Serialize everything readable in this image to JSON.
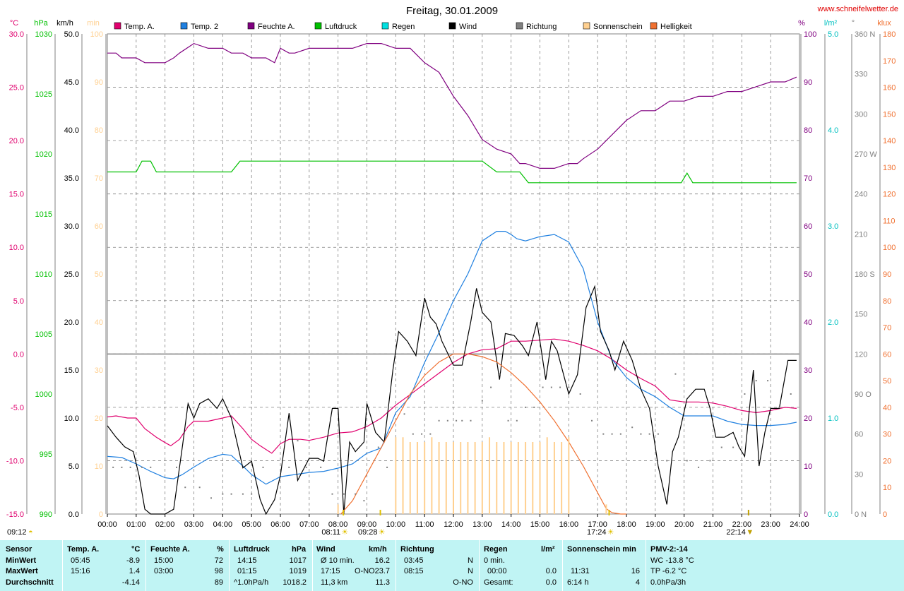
{
  "header": {
    "title": "Freitag, 30.01.2009",
    "website": "www.schneifelwetter.de"
  },
  "legend": [
    {
      "label": "Temp. A.",
      "color": "#e0006e"
    },
    {
      "label": "Temp. 2",
      "color": "#2080e0"
    },
    {
      "label": "Feuchte A.",
      "color": "#800080"
    },
    {
      "label": "Luftdruck",
      "color": "#00c000"
    },
    {
      "label": "Regen",
      "color": "#00e0e0"
    },
    {
      "label": "Wind",
      "color": "#000000"
    },
    {
      "label": "Richtung",
      "color": "#808080"
    },
    {
      "label": "Sonnenschein",
      "color": "#ffd090"
    },
    {
      "label": "Helligkeit",
      "color": "#f07030"
    }
  ],
  "axis_units": {
    "temp": "°C",
    "pressure": "hPa",
    "wind": "km/h",
    "sun": "min",
    "humidity": "%",
    "rain": "l/m²",
    "direction": "°",
    "lux": "klux"
  },
  "events": {
    "sunrise": "08:11",
    "sunrise2": "09:28",
    "sunset": "17:24",
    "moonset": "22:14",
    "moonrise": "09:12"
  },
  "chart_data": {
    "type": "line",
    "x_unit": "hour of day",
    "xlim": [
      0,
      24
    ],
    "x_ticks": [
      "00:00",
      "01:00",
      "02:00",
      "03:00",
      "04:00",
      "05:00",
      "06:00",
      "07:00",
      "08:00",
      "09:00",
      "10:00",
      "11:00",
      "12:00",
      "13:00",
      "14:00",
      "15:00",
      "16:00",
      "17:00",
      "18:00",
      "19:00",
      "20:00",
      "21:00",
      "22:00",
      "23:00",
      "24:00"
    ],
    "axes": {
      "temp": {
        "range": [
          -15,
          30
        ],
        "ticks": [
          "30.0",
          "25.0",
          "20.0",
          "15.0",
          "10.0",
          "5.0",
          "0.0",
          "-5.0",
          "-10.0",
          "-15.0"
        ],
        "color": "#e0006e"
      },
      "pressure": {
        "range": [
          990,
          1030
        ],
        "ticks": [
          "1030",
          "1025",
          "1020",
          "1015",
          "1010",
          "1005",
          "1000",
          "995",
          "990"
        ],
        "color": "#00c000"
      },
      "wind": {
        "range": [
          0,
          50
        ],
        "ticks": [
          "50.0",
          "45.0",
          "40.0",
          "35.0",
          "30.0",
          "25.0",
          "20.0",
          "15.0",
          "10.0",
          "5.0",
          "0.0"
        ],
        "color": "#000000"
      },
      "sun": {
        "range": [
          0,
          100
        ],
        "ticks": [
          "100",
          "90",
          "80",
          "70",
          "60",
          "50",
          "40",
          "30",
          "20",
          "10",
          "0"
        ],
        "color": "#ffd090"
      },
      "humidity": {
        "range": [
          0,
          100
        ],
        "ticks": [
          "100",
          "90",
          "80",
          "70",
          "60",
          "50",
          "40",
          "30",
          "20",
          "10",
          "0"
        ],
        "color": "#800080"
      },
      "rain": {
        "range": [
          0,
          5
        ],
        "ticks": [
          "5.0",
          "4.0",
          "3.0",
          "2.0",
          "1.0",
          "0.0"
        ],
        "color": "#00c0c0"
      },
      "direction": {
        "range": [
          0,
          360
        ],
        "ticks": [
          "360 N",
          "330",
          "300",
          "270 W",
          "240",
          "210",
          "180 S",
          "150",
          "120",
          "90 O",
          "60",
          "30",
          "0 N"
        ],
        "color": "#808080"
      },
      "lux": {
        "range": [
          0,
          180
        ],
        "ticks": [
          "180",
          "170",
          "160",
          "150",
          "140",
          "130",
          "120",
          "110",
          "100",
          "90",
          "80",
          "70",
          "60",
          "50",
          "40",
          "30",
          "20",
          "10",
          "0"
        ],
        "color": "#f07030"
      }
    },
    "series": [
      {
        "name": "Temp. A.",
        "axis": "temp",
        "color": "#e0006e",
        "x": [
          0,
          0.3,
          0.7,
          1,
          1.3,
          1.7,
          2,
          2.2,
          2.5,
          2.8,
          3,
          3.5,
          4,
          4.3,
          4.7,
          5,
          5.3,
          5.7,
          6,
          6.3,
          6.7,
          7,
          7.5,
          8,
          8.5,
          9,
          9.5,
          10,
          10.5,
          11,
          11.5,
          12,
          12.5,
          13,
          13.5,
          14,
          14.5,
          15,
          15.5,
          16,
          16.5,
          17,
          17.5,
          18,
          18.5,
          19,
          19.5,
          20,
          20.5,
          21,
          21.5,
          22,
          22.5,
          23,
          23.5,
          23.9
        ],
        "y": [
          -5.9,
          -5.8,
          -6.0,
          -6.0,
          -7.0,
          -7.8,
          -8.3,
          -8.6,
          -8.0,
          -6.8,
          -6.3,
          -6.3,
          -6.0,
          -5.8,
          -7.0,
          -8.0,
          -8.6,
          -9.3,
          -8.4,
          -8.0,
          -8.0,
          -8.1,
          -7.8,
          -7.4,
          -7.3,
          -6.8,
          -6.0,
          -4.8,
          -3.8,
          -2.8,
          -1.8,
          -0.8,
          0.0,
          0.4,
          0.5,
          1.2,
          1.2,
          1.3,
          1.4,
          1.2,
          0.8,
          0.3,
          -0.5,
          -1.5,
          -2.3,
          -3.0,
          -4.3,
          -4.5,
          -4.5,
          -4.6,
          -4.9,
          -5.3,
          -5.5,
          -5.3,
          -5.0,
          -5.1
        ]
      },
      {
        "name": "Temp. 2",
        "axis": "temp",
        "color": "#2080e0",
        "x": [
          0,
          0.5,
          1,
          1.5,
          2,
          2.3,
          2.6,
          3,
          3.5,
          4,
          4.3,
          4.7,
          5,
          5.5,
          6,
          6.5,
          7,
          7.5,
          8,
          8.5,
          9,
          9.5,
          10,
          10.5,
          11,
          11.5,
          12,
          12.5,
          13,
          13.5,
          13.8,
          14,
          14.2,
          14.5,
          15,
          15.5,
          16,
          16.5,
          17,
          17.5,
          18,
          18.5,
          19,
          19.5,
          20,
          20.5,
          21,
          21.5,
          22,
          22.5,
          23,
          23.5,
          23.9
        ],
        "y": [
          -9.6,
          -9.7,
          -10.3,
          -11.0,
          -11.6,
          -11.7,
          -11.3,
          -10.6,
          -9.8,
          -9.4,
          -9.5,
          -10.5,
          -11.3,
          -12.2,
          -11.5,
          -11.3,
          -11.1,
          -11.0,
          -10.7,
          -10.3,
          -9.3,
          -8.8,
          -5.5,
          -4.0,
          -0.8,
          2.0,
          5.0,
          7.5,
          10.6,
          11.5,
          11.5,
          11.2,
          10.8,
          10.6,
          11.0,
          11.2,
          10.5,
          8.0,
          3.0,
          -0.5,
          -2.2,
          -3.3,
          -4.0,
          -5.0,
          -5.8,
          -5.8,
          -5.8,
          -6.3,
          -6.6,
          -6.7,
          -6.7,
          -6.6,
          -6.4
        ]
      },
      {
        "name": "Feuchte A.",
        "axis": "humidity",
        "color": "#800080",
        "x": [
          0,
          0.3,
          0.5,
          1,
          1.3,
          1.5,
          2,
          2.3,
          2.5,
          3,
          3.5,
          4,
          4.3,
          4.7,
          5,
          5.5,
          5.8,
          6,
          6.3,
          6.5,
          7,
          7.5,
          8,
          8.5,
          9,
          9.5,
          10,
          10.5,
          11,
          11.5,
          12,
          12.5,
          13,
          13.5,
          14,
          14.3,
          14.5,
          15,
          15.5,
          16,
          16.3,
          16.5,
          17,
          17.5,
          18,
          18.5,
          19,
          19.5,
          20,
          20.5,
          21,
          21.5,
          22,
          22.5,
          23,
          23.5,
          23.9
        ],
        "y": [
          96,
          96,
          95,
          95,
          94,
          94,
          94,
          95,
          96,
          98,
          97,
          97,
          96,
          96,
          95,
          95,
          94,
          97,
          96,
          96,
          97,
          97,
          97,
          97,
          98,
          98,
          97,
          97,
          94,
          92,
          87,
          83,
          78,
          76,
          75,
          73,
          73,
          72,
          72,
          73,
          73,
          74,
          76,
          79,
          82,
          84,
          84,
          86,
          86,
          87,
          87,
          88,
          88,
          89,
          90,
          90,
          91
        ]
      },
      {
        "name": "Luftdruck",
        "axis": "pressure",
        "color": "#00c000",
        "x": [
          0,
          1,
          1.2,
          1.5,
          1.7,
          2,
          2.5,
          3,
          4,
          4.3,
          4.6,
          5,
          6,
          7,
          8,
          9,
          10,
          11,
          12,
          12.5,
          13,
          13.5,
          14,
          14.3,
          14.6,
          15,
          16,
          17,
          18,
          19,
          19.9,
          20.1,
          20.3,
          21,
          22,
          23,
          23.9
        ],
        "y": [
          1018.5,
          1018.5,
          1019.4,
          1019.4,
          1018.5,
          1018.5,
          1018.5,
          1018.5,
          1018.5,
          1018.5,
          1019.4,
          1019.4,
          1019.4,
          1019.4,
          1019.4,
          1019.4,
          1019.4,
          1019.4,
          1019.4,
          1019.4,
          1019.4,
          1018.5,
          1018.5,
          1018.5,
          1017.6,
          1017.6,
          1017.6,
          1017.6,
          1017.6,
          1017.6,
          1017.6,
          1018.4,
          1017.6,
          1017.6,
          1017.6,
          1017.6,
          1017.6
        ]
      },
      {
        "name": "Wind",
        "axis": "wind",
        "color": "#000000",
        "x": [
          0,
          0.3,
          0.6,
          0.9,
          1.1,
          1.3,
          1.5,
          1.8,
          2,
          2.3,
          2.6,
          2.8,
          3,
          3.2,
          3.5,
          3.8,
          4,
          4.3,
          4.7,
          5,
          5.3,
          5.5,
          5.8,
          6,
          6.3,
          6.6,
          7,
          7.3,
          7.5,
          7.8,
          8,
          8.2,
          8.4,
          8.6,
          8.9,
          9,
          9.3,
          9.6,
          9.9,
          10.1,
          10.4,
          10.7,
          11,
          11.2,
          11.4,
          11.6,
          12,
          12.3,
          12.6,
          12.8,
          13,
          13.3,
          13.6,
          13.8,
          14.1,
          14.4,
          14.6,
          14.9,
          15.2,
          15.4,
          15.6,
          16,
          16.3,
          16.6,
          16.9,
          17.1,
          17.4,
          17.6,
          17.9,
          18.2,
          18.5,
          18.8,
          19.1,
          19.4,
          19.6,
          19.8,
          20.1,
          20.4,
          20.7,
          20.9,
          21.1,
          21.4,
          21.7,
          21.9,
          22.1,
          22.4,
          22.6,
          22.8,
          23.0,
          23.3,
          23.6,
          23.9
        ],
        "y": [
          9.2,
          8.0,
          7.0,
          6.5,
          4.0,
          0.5,
          0.0,
          0.0,
          0.0,
          0.5,
          7.0,
          11.5,
          10.0,
          11.5,
          12.0,
          11.0,
          12.0,
          10.0,
          4.8,
          5.5,
          1.5,
          0.0,
          1.5,
          4.0,
          10.5,
          3.5,
          5.8,
          5.8,
          5.5,
          11.0,
          11.0,
          0.0,
          7.5,
          6.5,
          7.5,
          11.5,
          8.5,
          7.5,
          15.0,
          19.0,
          18.0,
          16.5,
          22.5,
          20.5,
          19.8,
          18.0,
          15.5,
          15.5,
          20.0,
          23.5,
          21.0,
          20.0,
          14.0,
          18.8,
          18.6,
          17.5,
          16.5,
          20.0,
          14.0,
          18.0,
          17.0,
          12.5,
          14.5,
          21.5,
          23.7,
          19.0,
          17.0,
          15.0,
          18.0,
          16.0,
          13.0,
          11.0,
          5.0,
          1.0,
          6.5,
          8.0,
          12.0,
          13.0,
          13.0,
          11.0,
          8.0,
          8.0,
          8.5,
          7.0,
          6.0,
          15.0,
          5.0,
          8.5,
          11.0,
          11.0,
          16.0,
          16.0
        ]
      },
      {
        "name": "Helligkeit",
        "axis": "lux",
        "color": "#f07030",
        "x": [
          8.1,
          8.5,
          9,
          9.5,
          10,
          10.5,
          11,
          11.5,
          12,
          12.5,
          13,
          13.5,
          14,
          14.5,
          15,
          15.5,
          16,
          16.5,
          17,
          17.3,
          17.5,
          17.8,
          18.0
        ],
        "y": [
          0,
          5,
          15,
          25,
          35,
          45,
          52,
          57,
          60,
          60,
          59,
          57,
          53,
          48,
          42,
          35,
          27,
          18,
          8,
          2,
          0.5,
          0,
          0
        ]
      },
      {
        "name": "Sonnenschein",
        "axis": "sun",
        "color": "#ffd090",
        "type": "bar",
        "x": [
          8.0,
          8.5,
          10.0,
          10.25,
          10.5,
          10.75,
          11.0,
          11.25,
          11.5,
          11.75,
          12.0,
          12.25,
          12.5,
          12.75,
          13.0,
          13.25,
          13.5,
          13.75,
          14.0,
          14.25,
          14.5,
          14.75,
          15.0,
          15.25,
          15.5,
          15.75,
          16.0,
          17.3
        ],
        "y": [
          2,
          0,
          16,
          16,
          15,
          15,
          15,
          16,
          15,
          15,
          15,
          15,
          15,
          15,
          15,
          16,
          15,
          15,
          15,
          15,
          15,
          15,
          15,
          16,
          15,
          15,
          16,
          2
        ]
      },
      {
        "name": "Richtung",
        "axis": "direction",
        "color": "#808080",
        "type": "scatter",
        "x": [
          0.2,
          0.5,
          0.8,
          1.2,
          1.5,
          2.4,
          2.7,
          3.2,
          3.6,
          4.0,
          4.3,
          4.7,
          5.0,
          5.4,
          6.3,
          6.6,
          6.9,
          7.4,
          7.8,
          8.2,
          8.6,
          8.9,
          9.4,
          9.7,
          10.3,
          10.6,
          10.9,
          11.2,
          11.5,
          11.8,
          12.1,
          12.3,
          12.6,
          13.0,
          13.3,
          13.6,
          13.9,
          14.2,
          14.5,
          14.8,
          15.1,
          15.4,
          15.7,
          16.0,
          16.4,
          16.8,
          17.2,
          17.5,
          17.8,
          18.2,
          18.5,
          18.8,
          19.1,
          19.4,
          19.7,
          20.1,
          20.5,
          20.9,
          21.3,
          21.7,
          22.1,
          22.5,
          22.9,
          23.3,
          23.7
        ],
        "y": [
          35,
          35,
          35,
          35,
          35,
          35,
          20,
          20,
          12,
          15,
          15,
          15,
          15,
          35,
          35,
          55,
          35,
          35,
          15,
          15,
          15,
          10,
          50,
          35,
          75,
          60,
          60,
          60,
          70,
          70,
          70,
          70,
          70,
          85,
          95,
          105,
          70,
          70,
          80,
          80,
          95,
          95,
          95,
          95,
          90,
          70,
          60,
          60,
          60,
          65,
          60,
          60,
          60,
          40,
          105,
          40,
          35,
          40,
          50,
          50,
          90,
          100,
          100,
          80,
          90
        ]
      }
    ],
    "reference_lines": [
      {
        "axis": "temp",
        "y": 0.0,
        "color": "#808080"
      }
    ]
  },
  "stats": {
    "headers": {
      "sensor": "Sensor",
      "temp": "Temp. A.",
      "temp_unit": "°C",
      "hum": "Feuchte A.",
      "hum_unit": "%",
      "press": "Luftdruck",
      "press_unit": "hPa",
      "wind": "Wind",
      "wind_unit": "km/h",
      "dir": "Richtung",
      "rain": "Regen",
      "rain_unit": "l/m²",
      "sun": "Sonnenschein min",
      "pmv": "PMV-2:-14"
    },
    "rows": [
      {
        "label": "MinWert",
        "temp_time": "05:45",
        "temp_val": "-8.9",
        "hum_time": "15:00",
        "hum_val": "72",
        "press_time": "14:15",
        "press_val": "1017",
        "wind_time": "Ø 10 min.",
        "wind_dir": "",
        "wind_val": "16.2",
        "dir_time": "03:45",
        "dir_val": "N",
        "rain_time": "0 min.",
        "rain_val": "",
        "sun_time": "",
        "sun_val": "",
        "pmv": "WC -13.8 °C"
      },
      {
        "label": "MaxWert",
        "temp_time": "15:16",
        "temp_val": "1.4",
        "hum_time": "03:00",
        "hum_val": "98",
        "press_time": "01:15",
        "press_val": "1019",
        "wind_time": "17:15",
        "wind_dir": "O-NO",
        "wind_val": "23.7",
        "dir_time": "08:15",
        "dir_val": "N",
        "rain_time": "00:00",
        "rain_val": "0.0",
        "sun_time": "11:31",
        "sun_val": "16",
        "pmv": "TP -6.2 °C"
      },
      {
        "label": "Durchschnitt",
        "temp_time": "",
        "temp_val": "-4.14",
        "hum_time": "",
        "hum_val": "89",
        "press_time": "^1.0hPa/h",
        "press_val": "1018.2",
        "wind_time": "11,3 km",
        "wind_dir": "",
        "wind_val": "11.3",
        "dir_time": "",
        "dir_val": "O-NO",
        "rain_time": "Gesamt:",
        "rain_val": "0.0",
        "sun_time": "6:14 h",
        "sun_val": "4",
        "pmv": "0.0hPa/3h"
      }
    ]
  }
}
